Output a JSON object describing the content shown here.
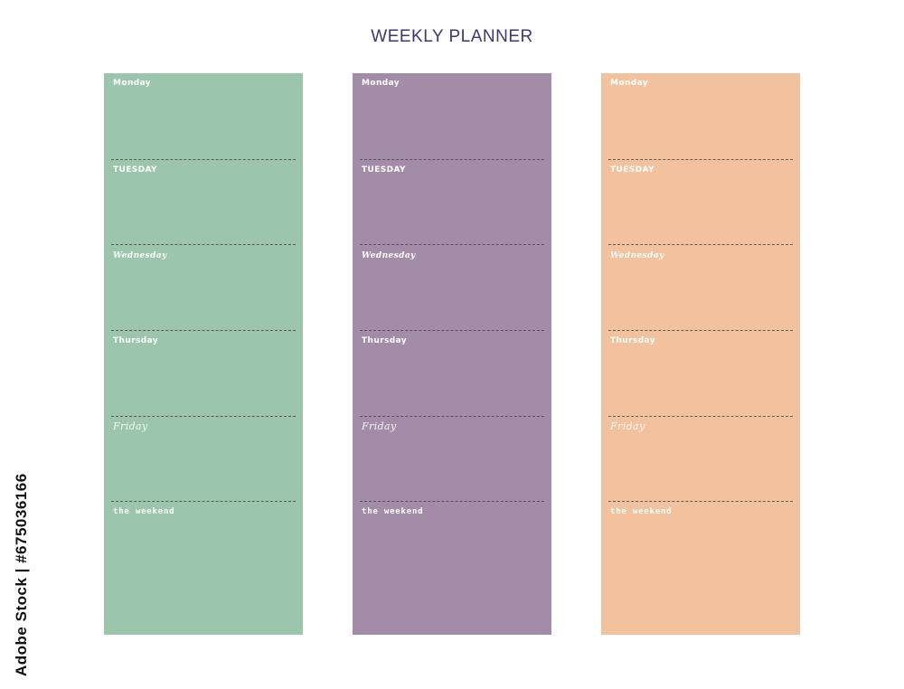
{
  "title": "WEEKLY PLANNER",
  "side_text": "Adobe Stock | #675036166",
  "colors": {
    "column_1": "#9bc6ab",
    "column_2": "#a38ca7",
    "column_3": "#f2c19d",
    "title": "#3b3a6e",
    "label": "#ffffff"
  },
  "columns": [
    {
      "days": [
        {
          "label": "Monday"
        },
        {
          "label": "TUESDAY"
        },
        {
          "label": "Wednesday"
        },
        {
          "label": "Thursday"
        },
        {
          "label": "Friday"
        },
        {
          "label": "the weekend"
        }
      ]
    },
    {
      "days": [
        {
          "label": "Monday"
        },
        {
          "label": "TUESDAY"
        },
        {
          "label": "Wednesday"
        },
        {
          "label": "Thursday"
        },
        {
          "label": "Friday"
        },
        {
          "label": "the weekend"
        }
      ]
    },
    {
      "days": [
        {
          "label": "Monday"
        },
        {
          "label": "TUESDAY"
        },
        {
          "label": "Wednesday"
        },
        {
          "label": "Thursday"
        },
        {
          "label": "Friday"
        },
        {
          "label": "the weekend"
        }
      ]
    }
  ]
}
